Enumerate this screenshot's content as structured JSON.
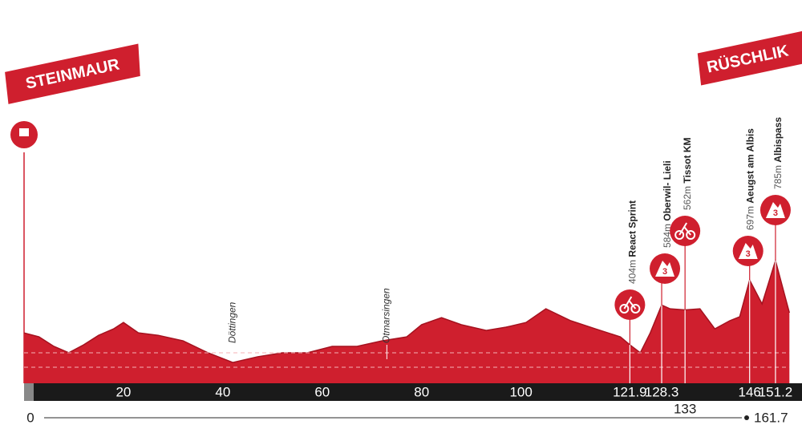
{
  "chart_data": {
    "type": "area",
    "start_town": "STEINMAUR",
    "finish_town": "RÜSCHLIK",
    "x": [
      0,
      3,
      6,
      9,
      12,
      15,
      18,
      20,
      23,
      27,
      32,
      37,
      42,
      47,
      52,
      57,
      62,
      67,
      72,
      77,
      80,
      84,
      88,
      93,
      97,
      101,
      105,
      110,
      115,
      120,
      121.9,
      124,
      126,
      128.3,
      130,
      133,
      136,
      139,
      142,
      144,
      146,
      148.5,
      151.2,
      154
    ],
    "values": [
      458,
      440,
      397,
      368,
      404,
      447,
      476,
      505,
      458,
      447,
      422,
      368,
      324,
      350,
      368,
      368,
      397,
      397,
      422,
      440,
      495,
      527,
      495,
      469,
      484,
      505,
      567,
      513,
      476,
      440,
      404,
      368,
      458,
      584,
      567,
      562,
      567,
      476,
      513,
      531,
      697,
      589,
      785,
      549
    ],
    "color": "#cf1f2e",
    "xlim": [
      0,
      161.7
    ],
    "ylim": [
      230,
      1000
    ],
    "xticks": [
      20,
      40,
      60,
      80,
      100,
      121.9,
      128.3,
      133,
      146,
      151.2
    ],
    "start_km": 0,
    "total_km": 161.7,
    "towns": [
      {
        "km": 42,
        "name": "Döttingen"
      },
      {
        "km": 73,
        "name": "Otmarsingen"
      }
    ],
    "annotations": [
      {
        "km": 121.9,
        "elevation": 404,
        "elevation_label": "404m",
        "name": "React Sprint",
        "kind": "sprint"
      },
      {
        "km": 128.3,
        "elevation": 584,
        "elevation_label": "584m",
        "name": "Oberwil- Lieli",
        "kind": "climb",
        "category": "3"
      },
      {
        "km": 133,
        "elevation": 562,
        "elevation_label": "562m",
        "name": "Tissot KM",
        "kind": "sprint"
      },
      {
        "km": 146,
        "elevation": 697,
        "elevation_label": "697m",
        "name": "Aeugst am Albis",
        "kind": "climb",
        "category": "3"
      },
      {
        "km": 151.2,
        "elevation": 785,
        "elevation_label": "785m",
        "name": "Albispass",
        "kind": "climb",
        "category": "3"
      }
    ]
  }
}
